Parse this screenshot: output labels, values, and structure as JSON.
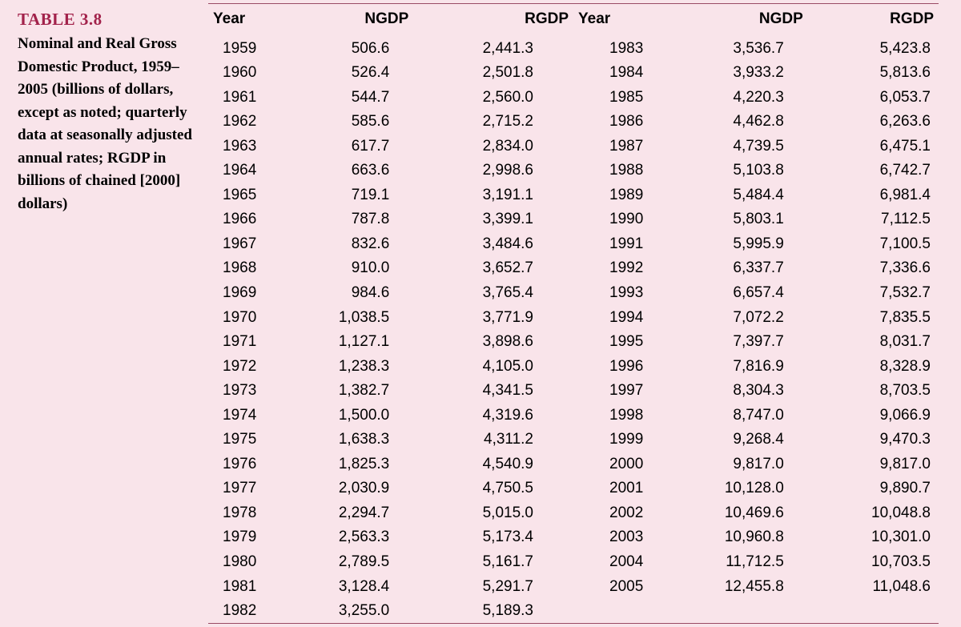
{
  "caption": {
    "title": "TABLE 3.8",
    "body": "Nominal and Real Gross Domestic Product, 1959–2005 (billions of dollars, except as noted; quarterly data at seasonally adjusted annual rates; RGDP in billions of chained [2000] dollars)"
  },
  "table": {
    "columns": [
      "Year",
      "NGDP",
      "RGDP"
    ],
    "background_color": "#f9e4ea",
    "title_color": "#a2224b",
    "text_color": "#000000",
    "rule_color": "#9a4a64",
    "header_font": "Optima",
    "body_font": "Optima",
    "caption_font": "Times New Roman",
    "fontsize": 19,
    "rows_left": [
      [
        "1959",
        "506.6",
        "2,441.3"
      ],
      [
        "1960",
        "526.4",
        "2,501.8"
      ],
      [
        "1961",
        "544.7",
        "2,560.0"
      ],
      [
        "1962",
        "585.6",
        "2,715.2"
      ],
      [
        "1963",
        "617.7",
        "2,834.0"
      ],
      [
        "1964",
        "663.6",
        "2,998.6"
      ],
      [
        "1965",
        "719.1",
        "3,191.1"
      ],
      [
        "1966",
        "787.8",
        "3,399.1"
      ],
      [
        "1967",
        "832.6",
        "3,484.6"
      ],
      [
        "1968",
        "910.0",
        "3,652.7"
      ],
      [
        "1969",
        "984.6",
        "3,765.4"
      ],
      [
        "1970",
        "1,038.5",
        "3,771.9"
      ],
      [
        "1971",
        "1,127.1",
        "3,898.6"
      ],
      [
        "1972",
        "1,238.3",
        "4,105.0"
      ],
      [
        "1973",
        "1,382.7",
        "4,341.5"
      ],
      [
        "1974",
        "1,500.0",
        "4,319.6"
      ],
      [
        "1975",
        "1,638.3",
        "4,311.2"
      ],
      [
        "1976",
        "1,825.3",
        "4,540.9"
      ],
      [
        "1977",
        "2,030.9",
        "4,750.5"
      ],
      [
        "1978",
        "2,294.7",
        "5,015.0"
      ],
      [
        "1979",
        "2,563.3",
        "5,173.4"
      ],
      [
        "1980",
        "2,789.5",
        "5,161.7"
      ],
      [
        "1981",
        "3,128.4",
        "5,291.7"
      ],
      [
        "1982",
        "3,255.0",
        "5,189.3"
      ]
    ],
    "rows_right": [
      [
        "1983",
        "3,536.7",
        "5,423.8"
      ],
      [
        "1984",
        "3,933.2",
        "5,813.6"
      ],
      [
        "1985",
        "4,220.3",
        "6,053.7"
      ],
      [
        "1986",
        "4,462.8",
        "6,263.6"
      ],
      [
        "1987",
        "4,739.5",
        "6,475.1"
      ],
      [
        "1988",
        "5,103.8",
        "6,742.7"
      ],
      [
        "1989",
        "5,484.4",
        "6,981.4"
      ],
      [
        "1990",
        "5,803.1",
        "7,112.5"
      ],
      [
        "1991",
        "5,995.9",
        "7,100.5"
      ],
      [
        "1992",
        "6,337.7",
        "7,336.6"
      ],
      [
        "1993",
        "6,657.4",
        "7,532.7"
      ],
      [
        "1994",
        "7,072.2",
        "7,835.5"
      ],
      [
        "1995",
        "7,397.7",
        "8,031.7"
      ],
      [
        "1996",
        "7,816.9",
        "8,328.9"
      ],
      [
        "1997",
        "8,304.3",
        "8,703.5"
      ],
      [
        "1998",
        "8,747.0",
        "9,066.9"
      ],
      [
        "1999",
        "9,268.4",
        "9,470.3"
      ],
      [
        "2000",
        "9,817.0",
        "9,817.0"
      ],
      [
        "2001",
        "10,128.0",
        "9,890.7"
      ],
      [
        "2002",
        "10,469.6",
        "10,048.8"
      ],
      [
        "2003",
        "10,960.8",
        "10,301.0"
      ],
      [
        "2004",
        "11,712.5",
        "10,703.5"
      ],
      [
        "2005",
        "12,455.8",
        "11,048.6"
      ]
    ]
  }
}
